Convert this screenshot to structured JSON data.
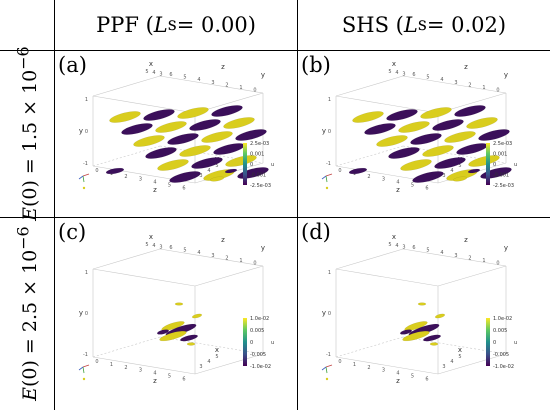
{
  "columns": [
    {
      "prefix": "PPF (",
      "var": "L",
      "sub": "s",
      "suffix": " = 0.00)"
    },
    {
      "prefix": "SHS (",
      "var": "L",
      "sub": "s",
      "suffix": " = 0.02)"
    }
  ],
  "rows": [
    {
      "var": "E",
      "mid": "(0) = 1.5 × 10",
      "exp": "−6"
    },
    {
      "var": "E",
      "mid": "(0) = 2.5 × 10",
      "exp": "−6"
    }
  ],
  "axis_labels": {
    "x": "x",
    "y": "y",
    "z": "z",
    "var": "u"
  },
  "ticks": {
    "x_top": [
      "5",
      "4",
      "3"
    ],
    "z_top": [
      "6",
      "5",
      "4",
      "3",
      "2",
      "1",
      "0"
    ],
    "y_left": [
      "1",
      "0",
      "-1"
    ],
    "z_bottom": [
      "0",
      "1",
      "2",
      "3",
      "4",
      "5",
      "6"
    ],
    "x_right": [
      "3",
      "4",
      "5"
    ]
  },
  "panels": [
    {
      "letter": "(a)",
      "row": 0,
      "col": 0,
      "colorbar": [
        "2.5e-03",
        "0.001",
        "0",
        "-0.001",
        "-2.5e-03"
      ]
    },
    {
      "letter": "(b)",
      "row": 0,
      "col": 1,
      "colorbar": [
        "2.5e-03",
        "0.001",
        "0",
        "-0.001",
        "-2.5e-03"
      ]
    },
    {
      "letter": "(c)",
      "row": 1,
      "col": 0,
      "colorbar": [
        "1.0e-02",
        "0.005",
        "0",
        "-0.005",
        "-1.0e-02"
      ]
    },
    {
      "letter": "(d)",
      "row": 1,
      "col": 1,
      "colorbar": [
        "1.0e-02",
        "0.005",
        "0",
        "-0.005",
        "-1.0e-02"
      ]
    }
  ],
  "colors": {
    "positive": "#d9cd1e",
    "negative": "#3b0f5a",
    "colormap": [
      "#fde725",
      "#5ec962",
      "#21918c",
      "#3b528b",
      "#440154"
    ]
  }
}
